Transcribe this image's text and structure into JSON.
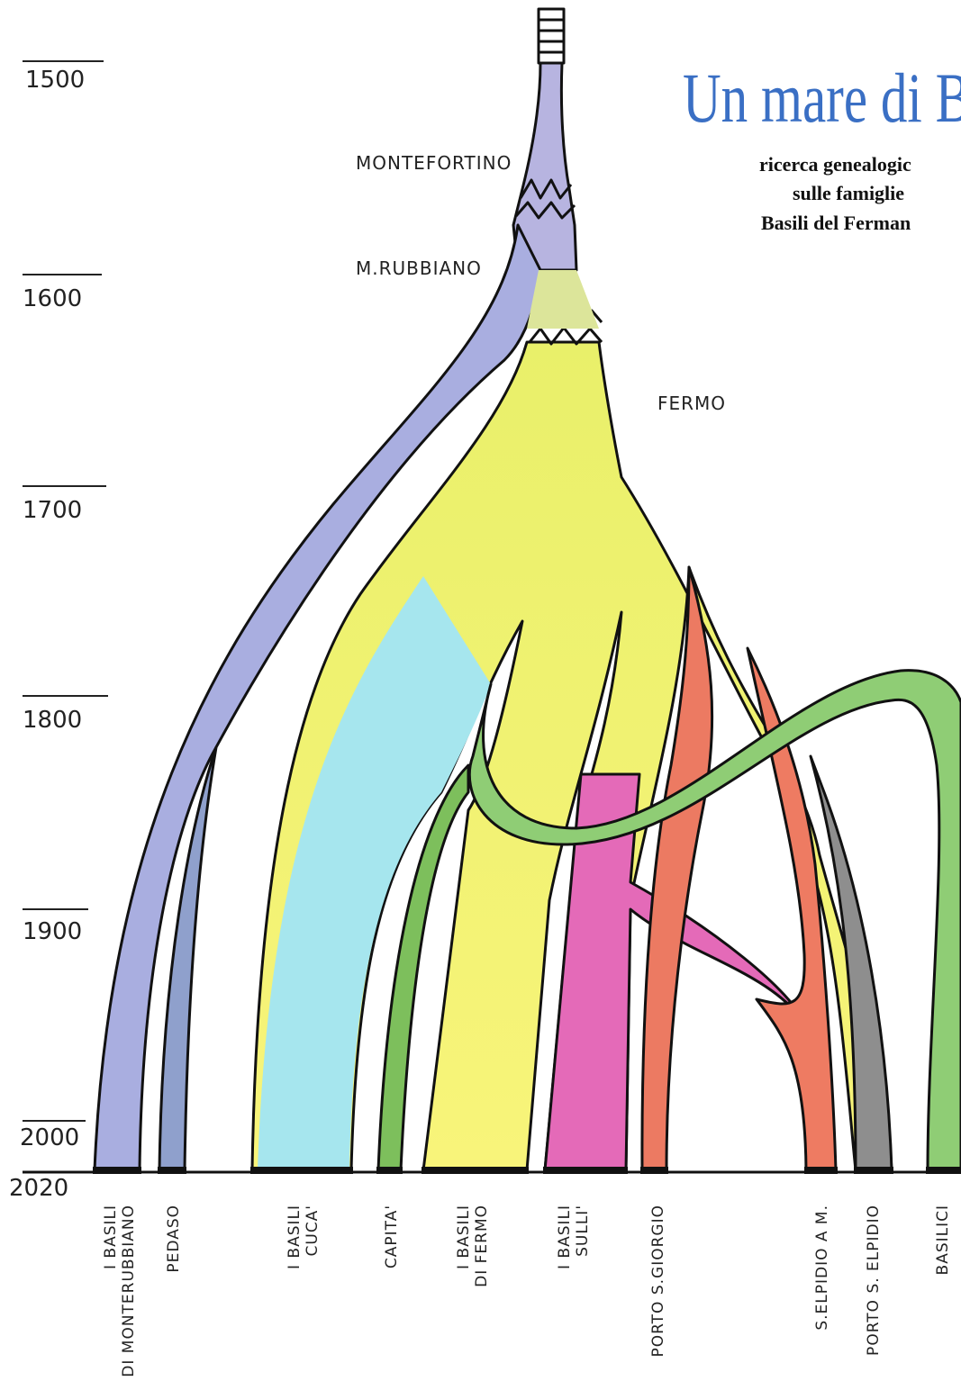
{
  "header": {
    "title": "Un mare di B",
    "subtitle": [
      "ricerca genealogic",
      "sulle famiglie",
      "Basili del Ferman"
    ]
  },
  "timeline": [
    "1500",
    "1600",
    "1700",
    "1800",
    "1900",
    "2000",
    "2020"
  ],
  "places": [
    "MONTEFORTINO",
    "M.RUBBIANO",
    "FERMO"
  ],
  "branches": [
    [
      "I BASILI",
      "DI MONTERUBBIANO"
    ],
    [
      "PEDASO"
    ],
    [
      "I BASILI",
      "CUCA'"
    ],
    [
      "CAPITA'"
    ],
    [
      "I BASILI",
      "DI FERMO"
    ],
    [
      "I BASILI",
      "SULLI'"
    ],
    [
      "PORTO S.GIORGIO"
    ],
    [
      "S.ELPIDIO A M."
    ],
    [
      "PORTO S. ELPIDIO"
    ],
    [
      "BASILICI"
    ]
  ]
}
